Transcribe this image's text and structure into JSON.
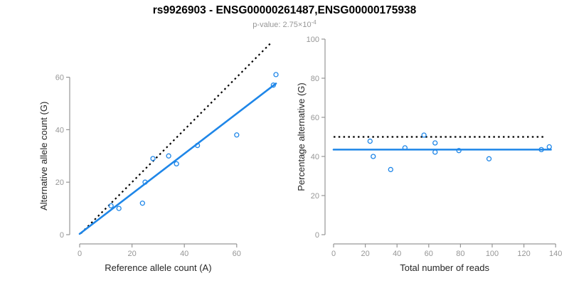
{
  "header": {
    "title": "rs9926903 - ENSG00000261487,ENSG00000175938",
    "subtitle_prefix": "p-value: 2.75×10",
    "subtitle_exponent": "-4"
  },
  "colors": {
    "blue": "#1E86E8",
    "black": "#000000",
    "axis_gray": "#969696",
    "tick_gray": "#969696",
    "axis_title": "#262626"
  },
  "chart_data": [
    {
      "type": "scatter",
      "title": "",
      "xlabel": "Reference allele count (A)",
      "ylabel": "Alternative allele count (G)",
      "x_ticks": [
        0,
        20,
        40,
        60
      ],
      "y_ticks": [
        0,
        20,
        40,
        60
      ],
      "xlim": [
        0,
        76
      ],
      "ylim": [
        0,
        75
      ],
      "grid": false,
      "legend": false,
      "points": [
        [
          12,
          11
        ],
        [
          15,
          10
        ],
        [
          24,
          12
        ],
        [
          25,
          20
        ],
        [
          28,
          29
        ],
        [
          34,
          30
        ],
        [
          37,
          27
        ],
        [
          45,
          34
        ],
        [
          60,
          38
        ],
        [
          74,
          57
        ],
        [
          75,
          61
        ]
      ],
      "lines": [
        {
          "name": "identity-line",
          "style": "dotted",
          "color": "black",
          "from": [
            0.5,
            0.5
          ],
          "to": [
            73,
            73
          ]
        },
        {
          "name": "fit-line",
          "style": "solid",
          "color": "blue",
          "from": [
            0,
            0.3
          ],
          "to": [
            75,
            57.6
          ]
        }
      ]
    },
    {
      "type": "scatter",
      "title": "",
      "xlabel": "Total number of reads",
      "ylabel": "Percentage alternative (G)",
      "x_ticks": [
        0,
        20,
        40,
        60,
        80,
        100,
        120,
        140
      ],
      "y_ticks": [
        0,
        20,
        40,
        60,
        80,
        100
      ],
      "xlim": [
        0,
        140
      ],
      "ylim": [
        0,
        100
      ],
      "grid": false,
      "legend": false,
      "points": [
        [
          23,
          47.8
        ],
        [
          25,
          40
        ],
        [
          36,
          33.3
        ],
        [
          45,
          44.4
        ],
        [
          57,
          50.9
        ],
        [
          64,
          46.9
        ],
        [
          64,
          42.2
        ],
        [
          79,
          43
        ],
        [
          98,
          38.8
        ],
        [
          131,
          43.5
        ],
        [
          136,
          44.9
        ]
      ],
      "lines": [
        {
          "name": "expected-50pct-line",
          "style": "dotted",
          "color": "black",
          "from": [
            0,
            50
          ],
          "to": [
            134,
            50
          ]
        },
        {
          "name": "fit-line",
          "style": "solid",
          "color": "blue",
          "from": [
            0,
            43.5
          ],
          "to": [
            137,
            43.5
          ]
        }
      ]
    }
  ]
}
